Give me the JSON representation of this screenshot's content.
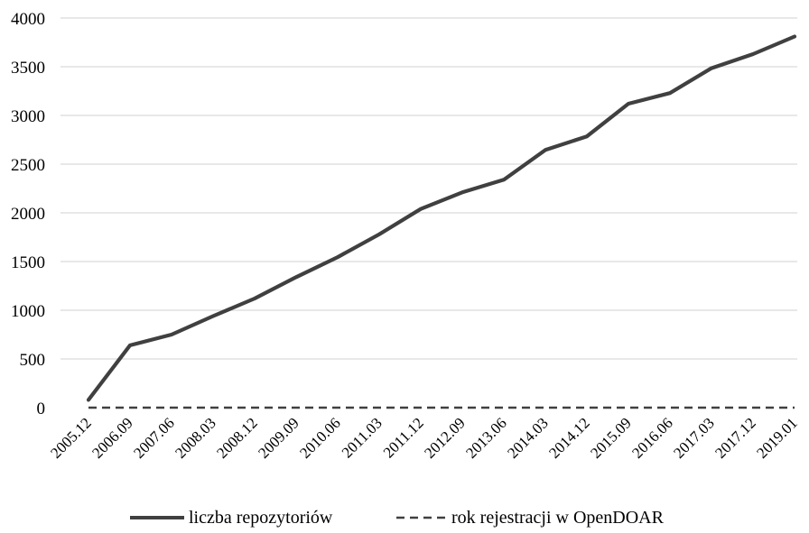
{
  "chart_data": {
    "type": "line",
    "title": "",
    "xlabel": "",
    "ylabel": "",
    "ylim": [
      0,
      4000
    ],
    "yticks": [
      0,
      500,
      1000,
      1500,
      2000,
      2500,
      3000,
      3500,
      4000
    ],
    "grid": "horizontal",
    "legend_position": "bottom",
    "categories": [
      "2005.12",
      "2006.09",
      "2007.06",
      "2008.03",
      "2008.12",
      "2009.09",
      "2010.06",
      "2011.03",
      "2011.12",
      "2012.09",
      "2013.06",
      "2014.03",
      "2014.12",
      "2015.09",
      "2016.06",
      "2017.03",
      "2017.12",
      "2019.01"
    ],
    "series": [
      {
        "name": "liczba repozytoriów",
        "style": "solid",
        "color": "#404040",
        "values": [
          80,
          640,
          750,
          940,
          1120,
          1340,
          1545,
          1780,
          2040,
          2210,
          2340,
          2645,
          2785,
          3120,
          3230,
          3485,
          3630,
          3810
        ]
      },
      {
        "name": "rok rejestracji w OpenDOAR",
        "style": "dashed",
        "color": "#404040",
        "values": [
          0,
          0,
          0,
          0,
          0,
          0,
          0,
          0,
          0,
          0,
          0,
          0,
          0,
          0,
          0,
          0,
          0,
          0
        ]
      }
    ]
  }
}
